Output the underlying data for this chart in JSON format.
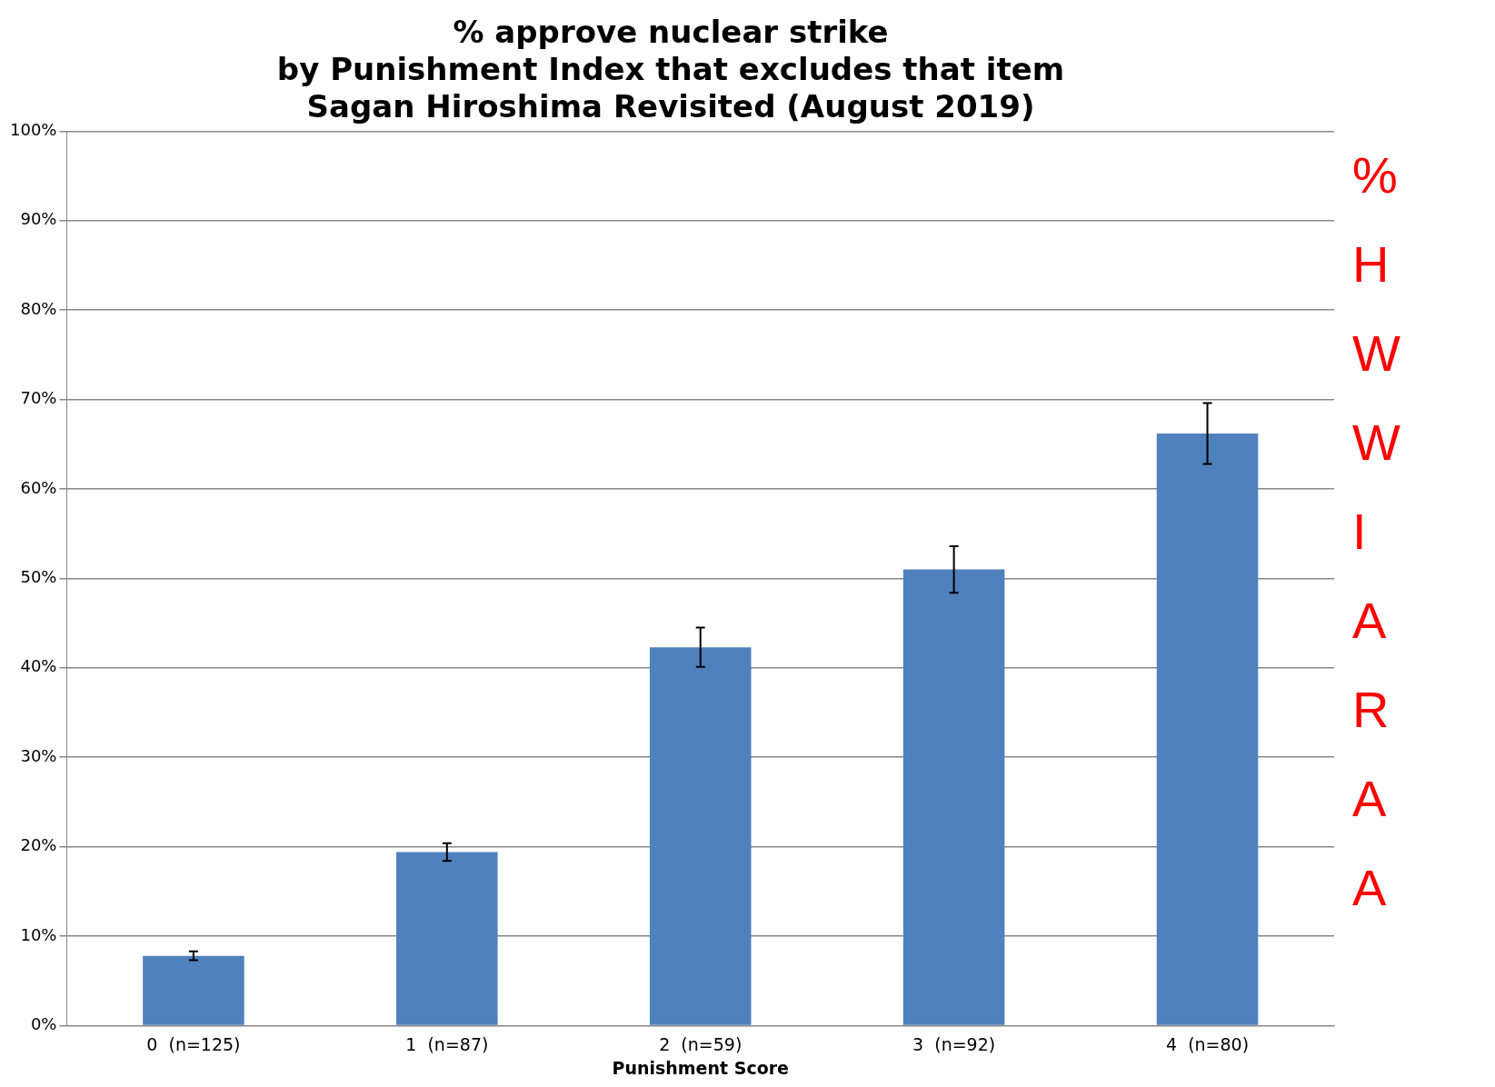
{
  "chart_data": {
    "type": "bar",
    "title": "% approve nuclear strike\nby Punishment Index that excludes that item\nSagan Hiroshima Revisited (August 2019)",
    "xlabel": "Punishment Score",
    "categories": [
      "0  (n=125)",
      "1  (n=87)",
      "2  (n=59)",
      "3  (n=92)",
      "4  (n=80)"
    ],
    "values": [
      7.8,
      19.4,
      42.3,
      51.0,
      66.2
    ],
    "color": "#4f81bd",
    "errors": [
      [
        7.3,
        8.3
      ],
      [
        18.4,
        20.4
      ],
      [
        40.1,
        44.5
      ],
      [
        48.4,
        53.6
      ],
      [
        62.8,
        69.6
      ]
    ],
    "ylim": [
      0,
      100
    ],
    "yticks": [
      {
        "value": 0,
        "label": "0%"
      },
      {
        "value": 10,
        "label": "10%"
      },
      {
        "value": 20,
        "label": "20%"
      },
      {
        "value": 30,
        "label": "30%"
      },
      {
        "value": 40,
        "label": "40%"
      },
      {
        "value": 50,
        "label": "50%"
      },
      {
        "value": 60,
        "label": "60%"
      },
      {
        "value": 70,
        "label": "70%"
      },
      {
        "value": 80,
        "label": "80%"
      },
      {
        "value": 90,
        "label": "90%"
      },
      {
        "value": 100,
        "label": "100%"
      }
    ],
    "grid": "y",
    "legend": false,
    "annotations": [
      "%",
      "H",
      "W",
      "W",
      "I",
      "A",
      "R",
      "A",
      "A"
    ]
  }
}
